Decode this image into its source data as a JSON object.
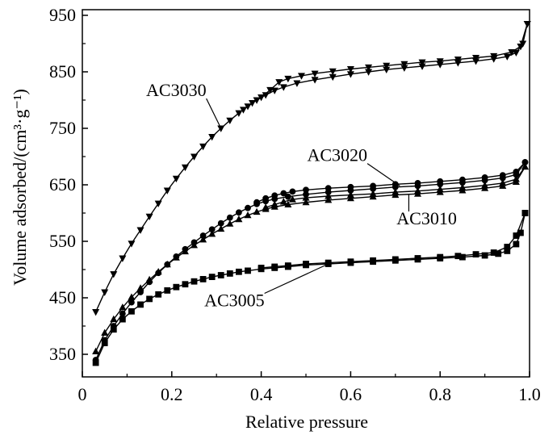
{
  "chart_data": {
    "type": "line",
    "title": "",
    "xlabel": "Relative pressure",
    "ylabel": "Volume adsorbed/(cm³·g⁻¹)",
    "xlim": [
      0,
      1.0
    ],
    "ylim": [
      310,
      960
    ],
    "xticks": [
      0,
      0.2,
      0.4,
      0.6,
      0.8,
      1.0
    ],
    "xtick_labels": [
      "0",
      "0.2",
      "0.4",
      "0.6",
      "0.8",
      "1.0"
    ],
    "yticks": [
      350,
      450,
      550,
      650,
      750,
      850,
      950
    ],
    "ytick_labels": [
      "350",
      "450",
      "550",
      "650",
      "750",
      "850",
      "950"
    ],
    "grid": false,
    "legend": "none (series labeled directly with leader lines)",
    "series": [
      {
        "name": "AC3030",
        "marker": "triangle-down",
        "adsorption": [
          [
            0.03,
            425
          ],
          [
            0.05,
            460
          ],
          [
            0.07,
            492
          ],
          [
            0.09,
            520
          ],
          [
            0.11,
            546
          ],
          [
            0.13,
            570
          ],
          [
            0.15,
            594
          ],
          [
            0.17,
            617
          ],
          [
            0.19,
            640
          ],
          [
            0.21,
            661
          ],
          [
            0.23,
            681
          ],
          [
            0.25,
            700
          ],
          [
            0.27,
            718
          ],
          [
            0.29,
            735
          ],
          [
            0.31,
            750
          ],
          [
            0.33,
            764
          ],
          [
            0.35,
            777
          ],
          [
            0.37,
            789
          ],
          [
            0.39,
            800
          ],
          [
            0.41,
            809
          ],
          [
            0.43,
            817
          ],
          [
            0.45,
            823
          ],
          [
            0.48,
            830
          ],
          [
            0.52,
            836
          ],
          [
            0.56,
            841
          ],
          [
            0.6,
            846
          ],
          [
            0.64,
            850
          ],
          [
            0.68,
            854
          ],
          [
            0.72,
            857
          ],
          [
            0.76,
            860
          ],
          [
            0.8,
            863
          ],
          [
            0.84,
            866
          ],
          [
            0.88,
            869
          ],
          [
            0.92,
            873
          ],
          [
            0.95,
            877
          ],
          [
            0.97,
            884
          ],
          [
            0.985,
            900
          ],
          [
            0.995,
            935
          ]
        ],
        "desorption": [
          [
            0.995,
            935
          ],
          [
            0.98,
            895
          ],
          [
            0.96,
            885
          ],
          [
            0.92,
            878
          ],
          [
            0.88,
            875
          ],
          [
            0.84,
            872
          ],
          [
            0.8,
            869
          ],
          [
            0.76,
            867
          ],
          [
            0.72,
            864
          ],
          [
            0.68,
            861
          ],
          [
            0.64,
            858
          ],
          [
            0.6,
            855
          ],
          [
            0.56,
            851
          ],
          [
            0.52,
            847
          ],
          [
            0.49,
            843
          ],
          [
            0.46,
            838
          ],
          [
            0.44,
            832
          ],
          [
            0.42,
            818
          ],
          [
            0.4,
            805
          ],
          [
            0.38,
            795
          ],
          [
            0.36,
            783
          ]
        ]
      },
      {
        "name": "AC3020",
        "marker": "circle",
        "adsorption": [
          [
            0.03,
            340
          ],
          [
            0.05,
            375
          ],
          [
            0.07,
            400
          ],
          [
            0.09,
            422
          ],
          [
            0.11,
            442
          ],
          [
            0.13,
            460
          ],
          [
            0.15,
            478
          ],
          [
            0.17,
            494
          ],
          [
            0.19,
            509
          ],
          [
            0.21,
            523
          ],
          [
            0.23,
            536
          ],
          [
            0.25,
            548
          ],
          [
            0.27,
            560
          ],
          [
            0.29,
            571
          ],
          [
            0.31,
            582
          ],
          [
            0.33,
            592
          ],
          [
            0.35,
            601
          ],
          [
            0.37,
            609
          ],
          [
            0.39,
            616
          ],
          [
            0.41,
            621
          ],
          [
            0.43,
            625
          ],
          [
            0.46,
            629
          ],
          [
            0.5,
            633
          ],
          [
            0.55,
            637
          ],
          [
            0.6,
            640
          ],
          [
            0.65,
            643
          ],
          [
            0.7,
            646
          ],
          [
            0.75,
            648
          ],
          [
            0.8,
            651
          ],
          [
            0.85,
            654
          ],
          [
            0.9,
            658
          ],
          [
            0.94,
            662
          ],
          [
            0.97,
            668
          ],
          [
            0.99,
            690
          ]
        ],
        "desorption": [
          [
            0.99,
            690
          ],
          [
            0.97,
            673
          ],
          [
            0.94,
            667
          ],
          [
            0.9,
            663
          ],
          [
            0.85,
            659
          ],
          [
            0.8,
            656
          ],
          [
            0.75,
            653
          ],
          [
            0.7,
            651
          ],
          [
            0.65,
            648
          ],
          [
            0.6,
            646
          ],
          [
            0.55,
            644
          ],
          [
            0.5,
            641
          ],
          [
            0.47,
            638
          ],
          [
            0.45,
            635
          ],
          [
            0.43,
            631
          ],
          [
            0.41,
            626
          ],
          [
            0.39,
            619
          ]
        ]
      },
      {
        "name": "AC3010",
        "marker": "triangle-up",
        "adsorption": [
          [
            0.03,
            355
          ],
          [
            0.05,
            388
          ],
          [
            0.07,
            412
          ],
          [
            0.09,
            433
          ],
          [
            0.11,
            451
          ],
          [
            0.13,
            467
          ],
          [
            0.15,
            482
          ],
          [
            0.17,
            496
          ],
          [
            0.19,
            509
          ],
          [
            0.21,
            521
          ],
          [
            0.23,
            532
          ],
          [
            0.25,
            543
          ],
          [
            0.27,
            553
          ],
          [
            0.29,
            563
          ],
          [
            0.31,
            572
          ],
          [
            0.33,
            581
          ],
          [
            0.35,
            589
          ],
          [
            0.37,
            596
          ],
          [
            0.39,
            602
          ],
          [
            0.41,
            607
          ],
          [
            0.43,
            611
          ],
          [
            0.46,
            615
          ],
          [
            0.5,
            619
          ],
          [
            0.55,
            623
          ],
          [
            0.6,
            626
          ],
          [
            0.65,
            629
          ],
          [
            0.7,
            632
          ],
          [
            0.75,
            634
          ],
          [
            0.8,
            637
          ],
          [
            0.85,
            640
          ],
          [
            0.9,
            644
          ],
          [
            0.94,
            648
          ],
          [
            0.97,
            655
          ],
          [
            0.99,
            682
          ]
        ],
        "desorption": [
          [
            0.99,
            682
          ],
          [
            0.97,
            660
          ],
          [
            0.94,
            653
          ],
          [
            0.9,
            649
          ],
          [
            0.85,
            645
          ],
          [
            0.8,
            642
          ],
          [
            0.75,
            639
          ],
          [
            0.7,
            637
          ],
          [
            0.65,
            634
          ],
          [
            0.6,
            632
          ],
          [
            0.55,
            630
          ],
          [
            0.5,
            627
          ],
          [
            0.47,
            624
          ],
          [
            0.45,
            620
          ],
          [
            0.43,
            615
          ],
          [
            0.41,
            610
          ]
        ]
      },
      {
        "name": "AC3005",
        "marker": "square",
        "adsorption": [
          [
            0.03,
            335
          ],
          [
            0.05,
            370
          ],
          [
            0.07,
            394
          ],
          [
            0.09,
            412
          ],
          [
            0.11,
            426
          ],
          [
            0.13,
            438
          ],
          [
            0.15,
            448
          ],
          [
            0.17,
            456
          ],
          [
            0.19,
            463
          ],
          [
            0.21,
            469
          ],
          [
            0.23,
            474
          ],
          [
            0.25,
            479
          ],
          [
            0.27,
            483
          ],
          [
            0.29,
            487
          ],
          [
            0.31,
            490
          ],
          [
            0.33,
            493
          ],
          [
            0.35,
            496
          ],
          [
            0.37,
            498
          ],
          [
            0.4,
            501
          ],
          [
            0.43,
            503
          ],
          [
            0.46,
            505
          ],
          [
            0.5,
            508
          ],
          [
            0.55,
            510
          ],
          [
            0.6,
            512
          ],
          [
            0.65,
            514
          ],
          [
            0.7,
            516
          ],
          [
            0.75,
            518
          ],
          [
            0.8,
            520
          ],
          [
            0.85,
            522
          ],
          [
            0.9,
            525
          ],
          [
            0.93,
            528
          ],
          [
            0.95,
            533
          ],
          [
            0.97,
            545
          ],
          [
            0.98,
            565
          ],
          [
            0.99,
            600
          ]
        ],
        "desorption": [
          [
            0.99,
            600
          ],
          [
            0.97,
            560
          ],
          [
            0.95,
            540
          ],
          [
            0.92,
            530
          ],
          [
            0.88,
            527
          ],
          [
            0.84,
            524
          ],
          [
            0.8,
            522
          ],
          [
            0.75,
            520
          ],
          [
            0.7,
            518
          ],
          [
            0.65,
            516
          ],
          [
            0.6,
            514
          ],
          [
            0.55,
            512
          ],
          [
            0.5,
            510
          ],
          [
            0.46,
            507
          ],
          [
            0.43,
            505
          ],
          [
            0.4,
            503
          ]
        ]
      }
    ],
    "annotations": [
      {
        "text": "AC3030",
        "series": "AC3030",
        "label_at": [
          0.21,
          807
        ],
        "points_to": [
          0.31,
          750
        ]
      },
      {
        "text": "AC3020",
        "series": "AC3020",
        "label_at": [
          0.57,
          692
        ],
        "points_to": [
          0.71,
          648
        ]
      },
      {
        "text": "AC3010",
        "series": "AC3010",
        "label_at": [
          0.77,
          580
        ],
        "points_to": [
          0.73,
          634
        ]
      },
      {
        "text": "AC3005",
        "series": "AC3005",
        "label_at": [
          0.34,
          435
        ],
        "points_to": [
          0.55,
          510
        ]
      }
    ]
  }
}
